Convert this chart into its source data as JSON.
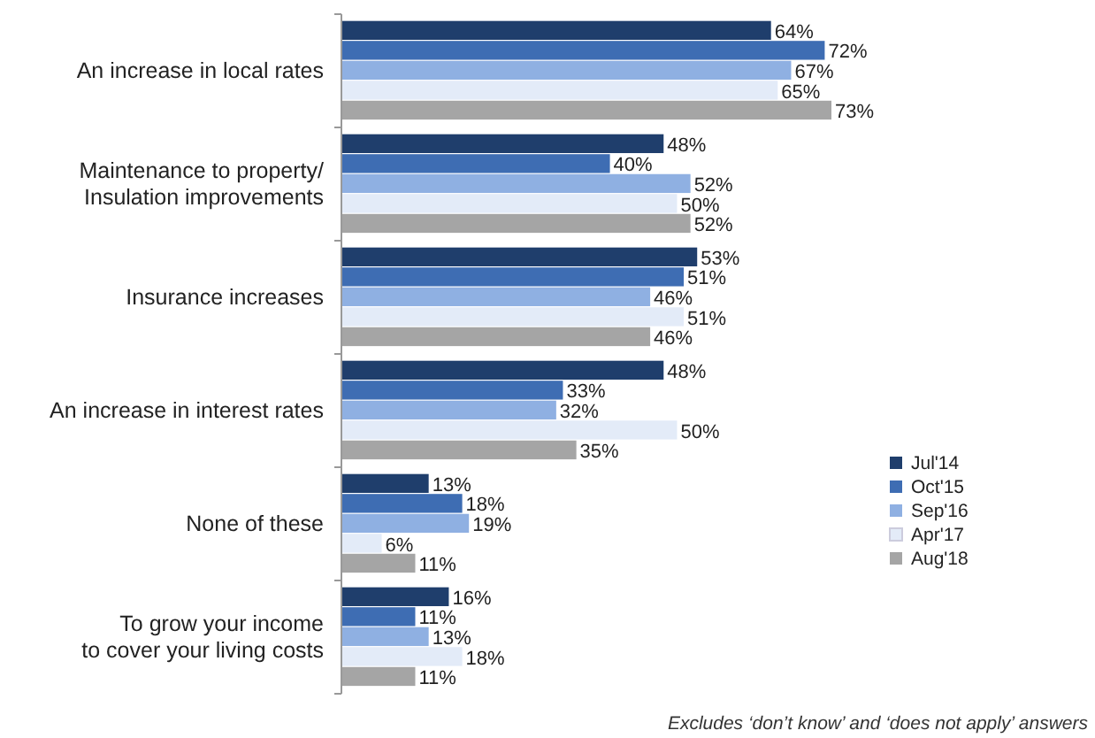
{
  "chart_data": {
    "type": "bar",
    "orientation": "horizontal",
    "legend": "right",
    "categories": [
      "An increase in local rates",
      "Maintenance to property/\nInsulation improvements",
      "Insurance increases",
      "An increase in interest rates",
      "None of these",
      "To grow your income\nto cover your living costs"
    ],
    "series": [
      {
        "name": "Jul'14",
        "color": "#1f3e6c",
        "values": [
          64,
          48,
          53,
          48,
          13,
          16
        ],
        "value_labels": [
          "64%",
          "48%",
          "53%",
          "48%",
          "13%",
          "16%"
        ]
      },
      {
        "name": "Oct'15",
        "color": "#3e6db3",
        "values": [
          72,
          40,
          51,
          33,
          18,
          11
        ],
        "value_labels": [
          "72%",
          "40%",
          "51%",
          "33%",
          "18%",
          "11%"
        ]
      },
      {
        "name": "Sep'16",
        "color": "#8fb0e2",
        "values": [
          67,
          52,
          46,
          32,
          19,
          13
        ],
        "value_labels": [
          "67%",
          "52%",
          "46%",
          "32%",
          "19%",
          "13%"
        ]
      },
      {
        "name": "Apr'17",
        "color": "#e3ebf8",
        "values": [
          65,
          50,
          51,
          50,
          6,
          18
        ],
        "value_labels": [
          "65%",
          "50%",
          "51%",
          "50%",
          "6%",
          "18%"
        ]
      },
      {
        "name": "Aug'18",
        "color": "#a5a5a5",
        "values": [
          73,
          52,
          46,
          35,
          11,
          11
        ],
        "value_labels": [
          "73%",
          "52%",
          "46%",
          "35%",
          "11%",
          "11%"
        ]
      }
    ],
    "annotations": [
      "Excludes ‘don’t know’ and ‘does not apply’ answers"
    ]
  }
}
